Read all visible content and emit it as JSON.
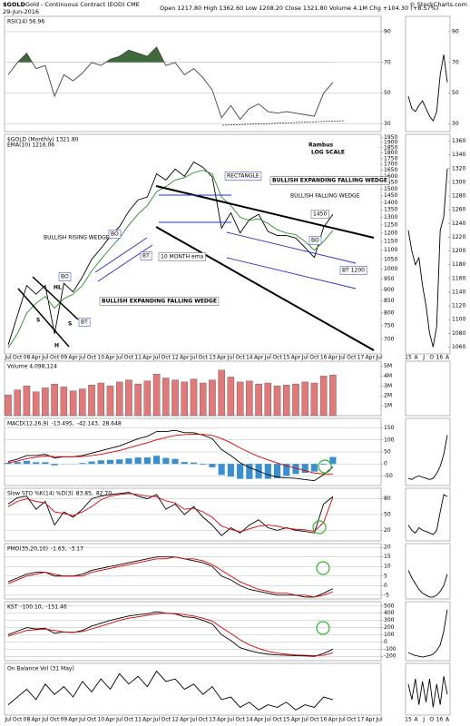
{
  "header": {
    "symbol": "$GOLD",
    "name": "Gold - Continuous Contract (EOD) CME",
    "date": "29-Jun-2016",
    "quote": "Open 1217.80  High 1362.60  Low 1208.20  Close 1321.80  Volume 4.1M  Chg +104.30 (+8.57%)",
    "source": "© StockCharts.com"
  },
  "x_labels": [
    "Jul",
    "Oct",
    "08",
    "Apr",
    "Jul",
    "Oct",
    "09",
    "Apr",
    "Jul",
    "Oct",
    "10",
    "Apr",
    "Jul",
    "Oct",
    "11",
    "Apr",
    "Jul",
    "Oct",
    "12",
    "Apr",
    "Jul",
    "Oct",
    "13",
    "Apr",
    "Jul",
    "Oct",
    "14",
    "Apr",
    "Jul",
    "Oct",
    "15",
    "Apr",
    "Jul",
    "Oct",
    "16",
    "Apr",
    "Jul",
    "Oct",
    "17",
    "Apr",
    "Jul"
  ],
  "side_x_labels": [
    "15",
    "A",
    "J",
    "O",
    "16",
    "A"
  ],
  "annotations": [
    "Rambus",
    "LOG SCALE",
    "RECTANGLE",
    "BULLISH EXPANDING FALLING WEDGE",
    "BULLISH FALLING WEDGE",
    "1450",
    "BO",
    "BT 1200",
    "BULLISH RISING WEDGE",
    "BO",
    "BT",
    "10 MONTH ema",
    "BO",
    "HL",
    "BT",
    "BULLISH EXPANDING FALLING WEDGE",
    "S",
    "H",
    "S"
  ],
  "chart_data": [
    {
      "type": "line",
      "label": "RSI(14) 56.96",
      "readouts": [],
      "ylim": [
        25,
        100
      ],
      "yticks": [
        30,
        50,
        70,
        90
      ],
      "grid": true,
      "fill_above": 70,
      "fill_color": "#3f6b3a",
      "series": [
        {
          "type": "line",
          "color": "#444",
          "values": [
            62,
            70,
            76,
            66,
            68,
            48,
            62,
            58,
            63,
            70,
            68,
            72,
            74,
            78,
            76,
            74,
            80,
            68,
            70,
            62,
            66,
            60,
            52,
            34,
            42,
            33,
            40,
            43,
            38,
            37,
            38,
            37,
            36,
            35,
            50,
            57
          ]
        }
      ],
      "side": {
        "ylim": [
          25,
          100
        ],
        "yticks": [
          30,
          50,
          70,
          90
        ],
        "values": [
          48,
          40,
          38,
          42,
          45,
          40,
          35,
          32,
          38,
          62,
          75,
          57
        ]
      }
    },
    {
      "type": "line",
      "log": true,
      "label": "$GOLD (Monthly) 1321.80",
      "readouts": [
        {
          "text": "EMA(10) 1216.06",
          "color": "#2e8b2e"
        }
      ],
      "ylim": [
        650,
        1980
      ],
      "grid": false,
      "yticks": [
        700,
        750,
        800,
        850,
        900,
        950,
        1000,
        1050,
        1100,
        1150,
        1200,
        1250,
        1300,
        1350,
        1400,
        1450,
        1500,
        1550,
        1600,
        1650,
        1700,
        1750,
        1800,
        1850,
        1900,
        1950
      ],
      "series": [
        {
          "type": "line",
          "color": "#000",
          "values": [
            680,
            790,
            920,
            880,
            920,
            720,
            930,
            890,
            960,
            1050,
            1110,
            1180,
            1240,
            1340,
            1420,
            1440,
            1620,
            1570,
            1660,
            1600,
            1720,
            1675,
            1595,
            1230,
            1330,
            1200,
            1285,
            1320,
            1210,
            1185,
            1185,
            1170,
            1115,
            1060,
            1235,
            1320
          ]
        },
        {
          "type": "line",
          "color": "#2e8b2e",
          "values": [
            670,
            720,
            800,
            840,
            870,
            820,
            860,
            880,
            920,
            990,
            1050,
            1110,
            1170,
            1250,
            1320,
            1380,
            1480,
            1520,
            1570,
            1590,
            1630,
            1650,
            1620,
            1440,
            1380,
            1300,
            1280,
            1290,
            1260,
            1220,
            1200,
            1190,
            1150,
            1100,
            1150,
            1216
          ]
        }
      ],
      "side": {
        "ylim": [
          1050,
          1370
        ],
        "yticks": [
          1060,
          1080,
          1100,
          1120,
          1140,
          1160,
          1180,
          1200,
          1220,
          1240,
          1260,
          1280,
          1300,
          1320,
          1340,
          1360
        ],
        "values": [
          1230,
          1200,
          1180,
          1190,
          1150,
          1120,
          1080,
          1060,
          1090,
          1230,
          1250,
          1320
        ]
      }
    },
    {
      "type": "bar",
      "label": "Volume 4,098,124",
      "readouts": [],
      "ylim": [
        0,
        5500000
      ],
      "grid": false,
      "yticks": [
        {
          "value": 1000000,
          "label": "1M"
        },
        {
          "value": 2000000,
          "label": "2M"
        },
        {
          "value": 3000000,
          "label": "3M"
        },
        {
          "value": 4000000,
          "label": "4M"
        },
        {
          "value": 5000000,
          "label": "5M"
        }
      ],
      "series": [
        {
          "type": "bar",
          "color": "#e07a7a",
          "values": [
            2100000,
            2600000,
            3000000,
            2400000,
            2800000,
            3200000,
            2900000,
            2500000,
            2700000,
            3100000,
            3300000,
            3000000,
            3400000,
            3600000,
            3200000,
            3500000,
            4200000,
            3800000,
            3600000,
            3400000,
            3700000,
            3300000,
            3600000,
            4600000,
            3900000,
            3400000,
            3500000,
            3200000,
            3300000,
            3000000,
            3100000,
            3200000,
            3400000,
            3300000,
            4000000,
            4100000
          ]
        }
      ]
    },
    {
      "type": "line",
      "label": "MACD(12,26,9)",
      "readouts": [
        {
          "text": "-13.495,",
          "color": "#000"
        },
        {
          "text": "-42.143,",
          "color": "#d00"
        },
        {
          "text": "28.648",
          "color": "#3a8fd0"
        }
      ],
      "ylim": [
        -90,
        190
      ],
      "yticks": [
        -50,
        0,
        50,
        100,
        150
      ],
      "grid": true,
      "series": [
        {
          "type": "bar",
          "color": "#3a8fd0",
          "values": [
            5,
            8,
            13,
            7,
            7,
            -6,
            0,
            0,
            4,
            10,
            15,
            17,
            19,
            23,
            27,
            27,
            34,
            25,
            21,
            8,
            6,
            -3,
            -14,
            -46,
            -53,
            -62,
            -63,
            -61,
            -62,
            -59,
            -50,
            -42,
            -37,
            -32,
            -3,
            29
          ]
        },
        {
          "type": "line",
          "color": "#000",
          "values": [
            10,
            20,
            35,
            35,
            40,
            25,
            30,
            30,
            35,
            45,
            55,
            65,
            75,
            90,
            105,
            115,
            135,
            135,
            140,
            130,
            130,
            120,
            105,
            60,
            35,
            5,
            -15,
            -30,
            -45,
            -55,
            -58,
            -60,
            -65,
            -70,
            -45,
            -13
          ]
        },
        {
          "type": "line",
          "color": "#d00",
          "values": [
            5,
            12,
            22,
            28,
            33,
            31,
            30,
            30,
            31,
            35,
            40,
            48,
            56,
            67,
            78,
            88,
            101,
            110,
            119,
            122,
            124,
            123,
            119,
            106,
            88,
            67,
            48,
            31,
            17,
            4,
            -8,
            -18,
            -28,
            -38,
            -42,
            -42
          ]
        }
      ],
      "side": {
        "values": [
          -60,
          -65,
          -55,
          -50,
          -55,
          -60,
          -65,
          -60,
          -40,
          -10,
          40,
          120
        ]
      }
    },
    {
      "type": "line",
      "label": "Slow STO %K(14) %D(3)",
      "readouts": [
        {
          "text": "83.85,",
          "color": "#000"
        },
        {
          "text": "82.70",
          "color": "#d00"
        }
      ],
      "ylim": [
        0,
        100
      ],
      "yticks": [
        20,
        50,
        80
      ],
      "grid": true,
      "series": [
        {
          "type": "line",
          "color": "#000",
          "values": [
            70,
            82,
            85,
            60,
            75,
            30,
            55,
            45,
            60,
            80,
            85,
            88,
            90,
            92,
            85,
            80,
            88,
            60,
            70,
            50,
            65,
            45,
            30,
            10,
            25,
            15,
            30,
            40,
            25,
            20,
            25,
            20,
            18,
            15,
            70,
            84
          ]
        },
        {
          "type": "line",
          "color": "#d00",
          "values": [
            65,
            75,
            80,
            75,
            72,
            55,
            52,
            48,
            55,
            65,
            78,
            85,
            88,
            90,
            88,
            85,
            84,
            76,
            72,
            60,
            62,
            55,
            45,
            28,
            22,
            17,
            23,
            28,
            30,
            28,
            24,
            22,
            21,
            18,
            35,
            83
          ]
        }
      ],
      "side": {
        "values": [
          30,
          20,
          15,
          25,
          20,
          18,
          15,
          12,
          20,
          55,
          88,
          84
        ]
      }
    },
    {
      "type": "line",
      "label": "PMO(35,20,10)",
      "readouts": [
        {
          "text": "-1.63,",
          "color": "#000"
        },
        {
          "text": "-3.17",
          "color": "#d00"
        }
      ],
      "ylim": [
        -7,
        22
      ],
      "yticks": [
        -5,
        0,
        5,
        10,
        15,
        20
      ],
      "grid": true,
      "series": [
        {
          "type": "line",
          "color": "#000",
          "values": [
            2,
            4,
            6,
            7,
            7,
            5,
            5,
            5,
            6,
            8,
            9,
            10,
            11,
            12,
            13,
            14,
            15,
            15,
            15,
            14,
            13,
            12,
            10,
            5,
            3,
            0,
            -2,
            -3,
            -4,
            -5,
            -5,
            -5,
            -6,
            -6,
            -4,
            -1.6
          ]
        },
        {
          "type": "line",
          "color": "#d00",
          "values": [
            1,
            3,
            5,
            6,
            7,
            6,
            5,
            5,
            5,
            7,
            8,
            9,
            10,
            11,
            12,
            13,
            14,
            14,
            15,
            14,
            14,
            13,
            11,
            8,
            5,
            2,
            0,
            -2,
            -3,
            -4,
            -4,
            -5,
            -5,
            -6,
            -5,
            -3.2
          ]
        }
      ],
      "side": {
        "values": [
          8,
          4,
          1,
          -2,
          -4,
          -5,
          -6,
          -6,
          -5,
          -3,
          0,
          6
        ]
      }
    },
    {
      "type": "line",
      "label": "KST",
      "readouts": [
        {
          "text": "-100.10,",
          "color": "#000"
        },
        {
          "text": "-151.46",
          "color": "#d00"
        }
      ],
      "ylim": [
        -260,
        560
      ],
      "yticks": [
        -200,
        -100,
        0,
        100,
        200,
        300,
        400,
        500
      ],
      "grid": true,
      "series": [
        {
          "type": "line",
          "color": "#000",
          "values": [
            100,
            150,
            200,
            180,
            190,
            120,
            140,
            130,
            160,
            220,
            260,
            300,
            330,
            360,
            380,
            390,
            420,
            400,
            390,
            350,
            340,
            300,
            250,
            100,
            20,
            -80,
            -120,
            -150,
            -170,
            -180,
            -185,
            -190,
            -195,
            -200,
            -160,
            -100
          ]
        },
        {
          "type": "line",
          "color": "#d00",
          "values": [
            80,
            120,
            160,
            170,
            180,
            160,
            140,
            135,
            145,
            180,
            220,
            260,
            300,
            330,
            350,
            370,
            390,
            400,
            395,
            380,
            360,
            330,
            290,
            200,
            120,
            30,
            -40,
            -90,
            -130,
            -155,
            -170,
            -180,
            -185,
            -190,
            -185,
            -151
          ]
        }
      ],
      "side": {
        "values": [
          -150,
          -170,
          -190,
          -200,
          -210,
          -200,
          -190,
          -170,
          -120,
          -40,
          150,
          450
        ]
      }
    },
    {
      "type": "line",
      "label": "On Balance Vol (31 May)",
      "readouts": [],
      "ylim": [
        0,
        100
      ],
      "yticks": [],
      "grid": false,
      "series": [
        {
          "type": "line",
          "color": "#000",
          "values": [
            20,
            35,
            50,
            30,
            60,
            40,
            55,
            35,
            65,
            45,
            70,
            50,
            80,
            60,
            75,
            55,
            85,
            65,
            70,
            50,
            60,
            40,
            55,
            30,
            35,
            15,
            25,
            10,
            20,
            15,
            25,
            10,
            20,
            15,
            35,
            30
          ]
        }
      ],
      "side": {
        "values": [
          60,
          30,
          70,
          20,
          65,
          25,
          70,
          15,
          60,
          20,
          75,
          40
        ]
      }
    }
  ]
}
